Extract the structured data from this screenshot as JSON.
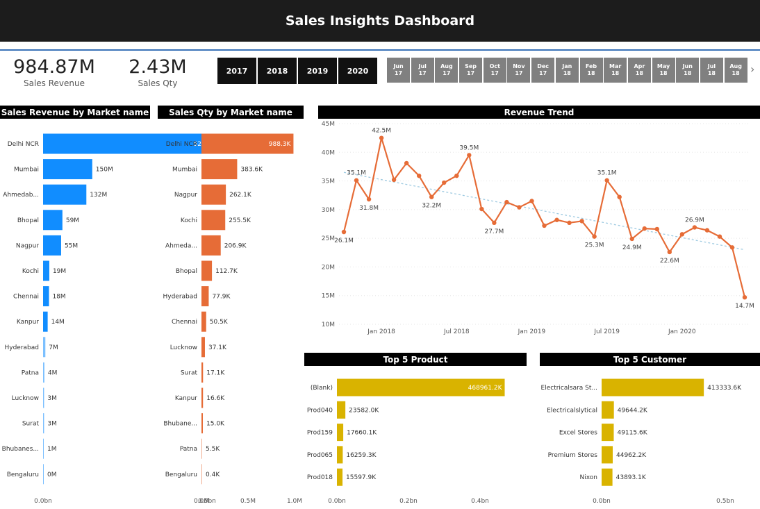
{
  "header": {
    "title": "Sales Insights Dashboard"
  },
  "kpis": [
    {
      "value": "984.87M",
      "label": "Sales Revenue"
    },
    {
      "value": "2.43M",
      "label": "Sales Qty"
    }
  ],
  "slicers": {
    "years": [
      "2017",
      "2018",
      "2019",
      "2020"
    ],
    "months": [
      {
        "m": "Jun",
        "y": "17"
      },
      {
        "m": "Jul",
        "y": "17"
      },
      {
        "m": "Aug",
        "y": "17"
      },
      {
        "m": "Sep",
        "y": "17"
      },
      {
        "m": "Oct",
        "y": "17"
      },
      {
        "m": "Nov",
        "y": "17"
      },
      {
        "m": "Dec",
        "y": "17"
      },
      {
        "m": "Jan",
        "y": "18"
      },
      {
        "m": "Feb",
        "y": "18"
      },
      {
        "m": "Mar",
        "y": "18"
      },
      {
        "m": "Apr",
        "y": "18"
      },
      {
        "m": "May",
        "y": "18"
      },
      {
        "m": "Jun",
        "y": "18"
      },
      {
        "m": "Jul",
        "y": "18"
      },
      {
        "m": "Aug",
        "y": "18"
      }
    ]
  },
  "chart_data": [
    {
      "id": "rev",
      "type": "bar",
      "orientation": "horizontal",
      "title": "Sales Revenue by Market name",
      "color": "#118dff",
      "categories": [
        "Delhi NCR",
        "Mumbai",
        "Ahmedab...",
        "Bhopal",
        "Nagpur",
        "Kochi",
        "Chennai",
        "Kanpur",
        "Hyderabad",
        "Patna",
        "Lucknow",
        "Surat",
        "Bhubanes...",
        "Bengaluru"
      ],
      "values": [
        520,
        150,
        132,
        59,
        55,
        19,
        18,
        14,
        7,
        4,
        3,
        3,
        1,
        0
      ],
      "labels": [
        "520M",
        "150M",
        "132M",
        "59M",
        "55M",
        "19M",
        "18M",
        "14M",
        "7M",
        "4M",
        "3M",
        "3M",
        "1M",
        "0M"
      ],
      "xlim": [
        0,
        500
      ],
      "xticks": [
        {
          "v": 0,
          "t": "0.0bn"
        },
        {
          "v": 500,
          "t": "0.5bn"
        }
      ]
    },
    {
      "id": "qty",
      "type": "bar",
      "orientation": "horizontal",
      "title": "Sales Qty by Market name",
      "color": "#e66c37",
      "categories": [
        "Delhi NCR",
        "Mumbai",
        "Nagpur",
        "Kochi",
        "Ahmeda...",
        "Bhopal",
        "Hyderabad",
        "Chennai",
        "Lucknow",
        "Surat",
        "Kanpur",
        "Bhubane...",
        "Patna",
        "Bengaluru"
      ],
      "values": [
        988.3,
        383.6,
        262.1,
        255.5,
        206.9,
        112.7,
        77.9,
        50.5,
        37.1,
        17.1,
        16.6,
        15.0,
        5.5,
        0.4
      ],
      "labels": [
        "988.3K",
        "383.6K",
        "262.1K",
        "255.5K",
        "206.9K",
        "112.7K",
        "77.9K",
        "50.5K",
        "37.1K",
        "17.1K",
        "16.6K",
        "15.0K",
        "5.5K",
        "0.4K"
      ],
      "xlim": [
        0,
        1000
      ],
      "xticks": [
        {
          "v": 0,
          "t": "0.0M"
        },
        {
          "v": 500,
          "t": "0.5M"
        },
        {
          "v": 1000,
          "t": "1.0M"
        }
      ]
    },
    {
      "id": "trend",
      "type": "line",
      "title": "Revenue Trend",
      "color": "#e66c37",
      "trend_color": "#9ecae1",
      "x": [
        "2017-10",
        "2017-11",
        "2017-12",
        "2018-01",
        "2018-02",
        "2018-03",
        "2018-04",
        "2018-05",
        "2018-06",
        "2018-07",
        "2018-08",
        "2018-09",
        "2018-10",
        "2018-11",
        "2018-12",
        "2019-01",
        "2019-02",
        "2019-03",
        "2019-04",
        "2019-05",
        "2019-06",
        "2019-07",
        "2019-08",
        "2019-09",
        "2019-10",
        "2019-11",
        "2019-12",
        "2020-01",
        "2020-02",
        "2020-03",
        "2020-04",
        "2020-05",
        "2020-06"
      ],
      "y": [
        26.1,
        35.1,
        31.8,
        42.5,
        35.2,
        38.1,
        35.9,
        32.2,
        34.7,
        35.9,
        39.5,
        30.1,
        27.7,
        31.3,
        30.4,
        31.5,
        27.2,
        28.2,
        27.7,
        28.0,
        25.3,
        35.1,
        32.2,
        24.9,
        26.7,
        26.6,
        22.6,
        25.7,
        26.9,
        26.4,
        25.3,
        23.4,
        14.7
      ],
      "point_labels": [
        {
          "i": 0,
          "t": "26.1M",
          "pos": "below"
        },
        {
          "i": 1,
          "t": "35.1M",
          "pos": "above"
        },
        {
          "i": 2,
          "t": "31.8M",
          "pos": "below"
        },
        {
          "i": 3,
          "t": "42.5M",
          "pos": "above"
        },
        {
          "i": 7,
          "t": "32.2M",
          "pos": "below"
        },
        {
          "i": 10,
          "t": "39.5M",
          "pos": "above"
        },
        {
          "i": 12,
          "t": "27.7M",
          "pos": "below"
        },
        {
          "i": 20,
          "t": "25.3M",
          "pos": "below"
        },
        {
          "i": 21,
          "t": "35.1M",
          "pos": "above"
        },
        {
          "i": 23,
          "t": "24.9M",
          "pos": "below"
        },
        {
          "i": 26,
          "t": "22.6M",
          "pos": "below"
        },
        {
          "i": 28,
          "t": "26.9M",
          "pos": "above"
        },
        {
          "i": 32,
          "t": "14.7M",
          "pos": "below"
        }
      ],
      "trend_line": [
        36.5,
        23.0
      ],
      "ylim": [
        10,
        45
      ],
      "yticks": [
        {
          "v": 10,
          "t": "10M"
        },
        {
          "v": 15,
          "t": "15M"
        },
        {
          "v": 20,
          "t": "20M"
        },
        {
          "v": 25,
          "t": "25M"
        },
        {
          "v": 30,
          "t": "30M"
        },
        {
          "v": 35,
          "t": "35M"
        },
        {
          "v": 40,
          "t": "40M"
        },
        {
          "v": 45,
          "t": "45M"
        }
      ],
      "xticks": [
        {
          "i": 3,
          "t": "Jan 2018"
        },
        {
          "i": 9,
          "t": "Jul 2018"
        },
        {
          "i": 15,
          "t": "Jan 2019"
        },
        {
          "i": 21,
          "t": "Jul 2019"
        },
        {
          "i": 27,
          "t": "Jan 2020"
        }
      ]
    },
    {
      "id": "prod",
      "type": "bar",
      "orientation": "horizontal",
      "title": "Top 5 Product",
      "color": "#d9b300",
      "categories": [
        "(Blank)",
        "Prod040",
        "Prod159",
        "Prod065",
        "Prod018"
      ],
      "values": [
        468961.2,
        23582.0,
        17660.1,
        16259.3,
        15597.9
      ],
      "labels": [
        "468961.2K",
        "23582.0K",
        "17660.1K",
        "16259.3K",
        "15597.9K"
      ],
      "xlim": [
        0,
        400000
      ],
      "xticks": [
        {
          "v": 0,
          "t": "0.0bn"
        },
        {
          "v": 200000,
          "t": "0.2bn"
        },
        {
          "v": 400000,
          "t": "0.4bn"
        }
      ]
    },
    {
      "id": "cust",
      "type": "bar",
      "orientation": "horizontal",
      "title": "Top 5 Customer",
      "color": "#d9b300",
      "categories": [
        "Electricalsara St...",
        "Electricalslytical",
        "Excel Stores",
        "Premium Stores",
        "Nixon"
      ],
      "values": [
        413333.6,
        49644.2,
        49115.6,
        44962.2,
        43893.1
      ],
      "labels": [
        "413333.6K",
        "49644.2K",
        "49115.6K",
        "44962.2K",
        "43893.1K"
      ],
      "xlim": [
        0,
        500000
      ],
      "xticks": [
        {
          "v": 0,
          "t": "0.0bn"
        },
        {
          "v": 500000,
          "t": "0.5bn"
        }
      ]
    }
  ]
}
